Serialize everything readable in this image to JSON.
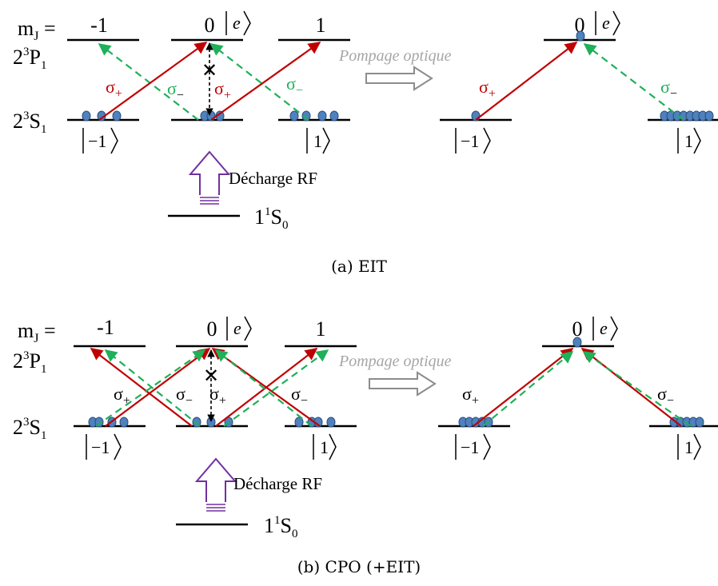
{
  "colors": {
    "red": "#c00000",
    "green": "#1fb05a",
    "atom": "#4f81bd",
    "atom_stroke": "#2a4f7e",
    "gray_text": "#a6a6a6",
    "purple": "#7030a0",
    "black": "#000000"
  },
  "labels": {
    "mj": "m",
    "mj_sub": "J",
    "mj_eq": " =",
    "mj_m1": "-1",
    "mj_0": "0",
    "mj_1": "1",
    "p_level_main": "2",
    "p_level_sup": "3",
    "p_level_letter": "P",
    "p_level_sub": "1",
    "s_level_main": "2",
    "s_level_sup": "3",
    "s_level_letter": "S",
    "s_level_sub": "1",
    "ground_main": "1",
    "ground_sup": "1",
    "ground_letter": "S",
    "ground_sub": "0",
    "sigma": "σ",
    "plus": "+",
    "minus": "−",
    "ket_e": "e",
    "ket_m1": "−1",
    "ket_1": "1",
    "pumping": "Pompage optique",
    "discharge": "Décharge RF",
    "blocked": "✕"
  },
  "panels": [
    {
      "caption": "(a)  EIT"
    },
    {
      "caption": "(b)  CPO (+EIT)"
    }
  ]
}
